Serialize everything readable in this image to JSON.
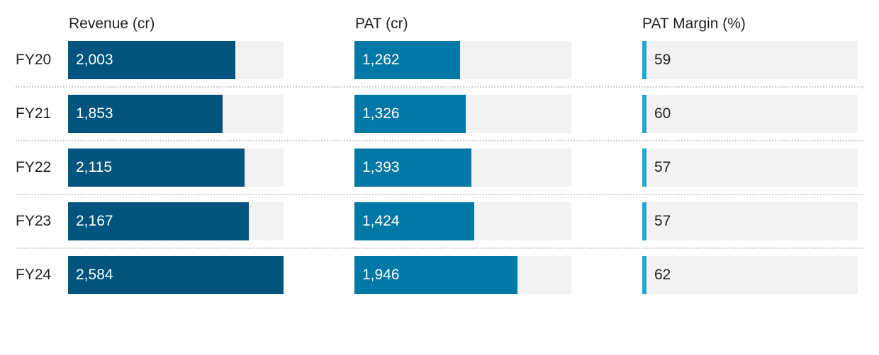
{
  "chart_data": {
    "type": "bar",
    "orientation": "horizontal",
    "layout": "table-of-bars",
    "categories": [
      "FY20",
      "FY21",
      "FY22",
      "FY23",
      "FY24"
    ],
    "series": [
      {
        "name": "Revenue (cr)",
        "values": [
          "2,003",
          "1,853",
          "2,115",
          "2,167",
          "2,584"
        ],
        "numeric": [
          2003,
          1853,
          2115,
          2167,
          2584
        ],
        "max": 2584,
        "color": "#00547d"
      },
      {
        "name": "PAT (cr)",
        "values": [
          "1,262",
          "1,326",
          "1,393",
          "1,424",
          "1,946"
        ],
        "numeric": [
          1262,
          1326,
          1393,
          1424,
          1946
        ],
        "max": 2584,
        "color": "#0078a5"
      },
      {
        "name": "PAT Margin (%)",
        "values": [
          "59",
          "60",
          "57",
          "57",
          "62"
        ],
        "numeric": [
          59,
          60,
          57,
          57,
          62
        ],
        "max": 100,
        "color": "#1ea8d6",
        "style": "indicator"
      }
    ],
    "track_color": "#f2f2f2",
    "grid": false
  }
}
